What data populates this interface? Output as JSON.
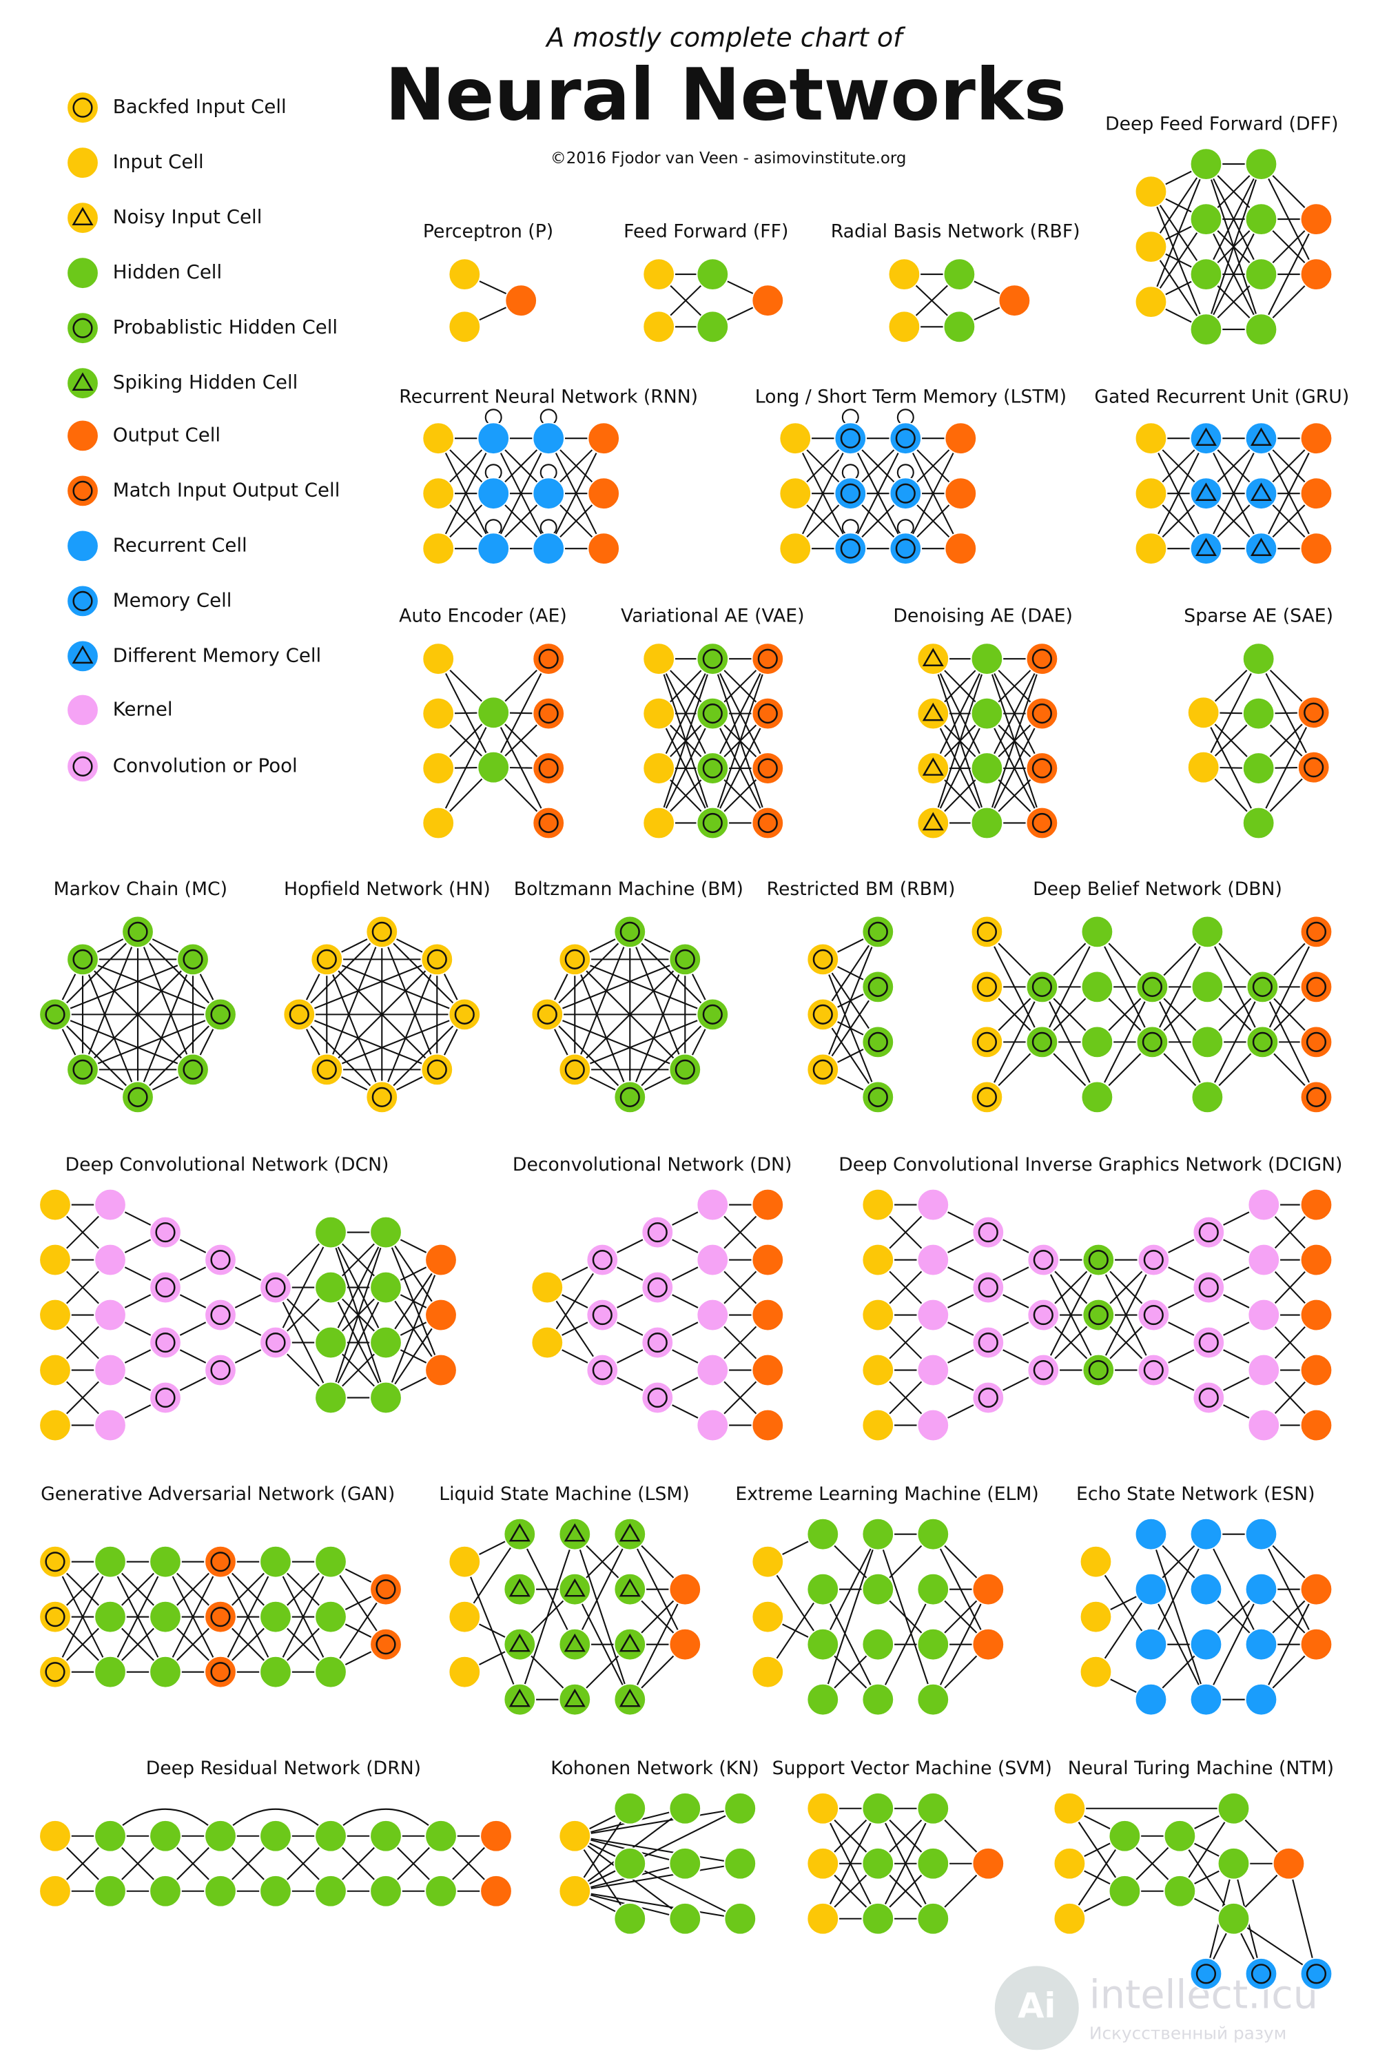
{
  "header": {
    "subtitle": "A mostly complete chart of",
    "title": "Neural Networks",
    "credit": "©2016 Fjodor van Veen - asimovinstitute.org"
  },
  "legend": [
    "Backfed Input Cell",
    "Input Cell",
    "Noisy Input Cell",
    "Hidden Cell",
    "Probablistic Hidden Cell",
    "Spiking Hidden Cell",
    "Output Cell",
    "Match Input Output Cell",
    "Recurrent Cell",
    "Memory Cell",
    "Different Memory Cell",
    "Kernel",
    "Convolution or Pool"
  ],
  "networks": [
    {
      "title": "Perceptron (P)"
    },
    {
      "title": "Feed Forward (FF)"
    },
    {
      "title": "Radial Basis Network (RBF)"
    },
    {
      "title": "Deep Feed Forward (DFF)"
    },
    {
      "title": "Recurrent Neural Network (RNN)"
    },
    {
      "title": "Long / Short Term Memory (LSTM)"
    },
    {
      "title": "Gated Recurrent Unit (GRU)"
    },
    {
      "title": "Auto Encoder (AE)"
    },
    {
      "title": "Variational AE (VAE)"
    },
    {
      "title": "Denoising AE (DAE)"
    },
    {
      "title": "Sparse AE (SAE)"
    },
    {
      "title": "Markov Chain (MC)"
    },
    {
      "title": "Hopfield Network (HN)"
    },
    {
      "title": "Boltzmann Machine (BM)"
    },
    {
      "title": "Restricted BM (RBM)"
    },
    {
      "title": "Deep Belief Network (DBN)"
    },
    {
      "title": "Deep Convolutional Network (DCN)"
    },
    {
      "title": "Deconvolutional Network (DN)"
    },
    {
      "title": "Deep Convolutional Inverse Graphics Network (DCIGN)"
    },
    {
      "title": "Generative Adversarial Network (GAN)"
    },
    {
      "title": "Liquid State Machine (LSM)"
    },
    {
      "title": "Extreme Learning Machine (ELM)"
    },
    {
      "title": "Echo State Network (ESN)"
    },
    {
      "title": "Deep Residual Network (DRN)"
    },
    {
      "title": "Kohonen Network (KN)"
    },
    {
      "title": "Support Vector Machine (SVM)"
    },
    {
      "title": "Neural Turing Machine (NTM)"
    }
  ],
  "watermark": {
    "text": "intellect.icu",
    "subtext": "Искусственный разум"
  }
}
